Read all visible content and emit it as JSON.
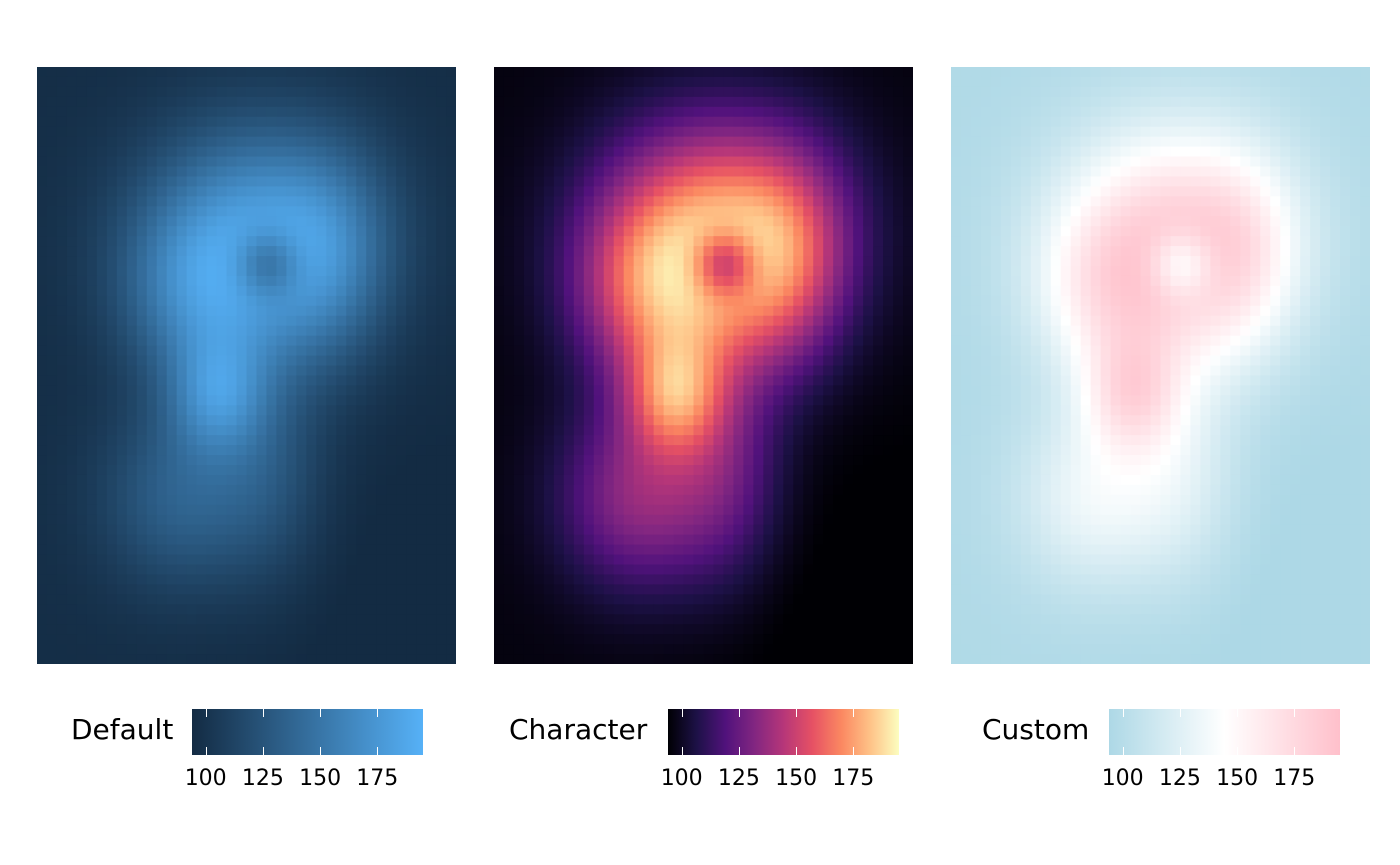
{
  "chart_data": [
    {
      "type": "heatmap",
      "legend_title": "Default",
      "colors": [
        "#132B43",
        "#56B1F7"
      ],
      "legend_ticks": [
        "100",
        "125",
        "150",
        "175"
      ],
      "legend_tick_values": [
        100,
        125,
        150,
        175
      ],
      "value_range": [
        94,
        195
      ],
      "legend_position": "bottom"
    },
    {
      "type": "heatmap",
      "legend_title": "Character",
      "colors": [
        "#000004",
        "#1D1147",
        "#51127C",
        "#822681",
        "#B63679",
        "#E65164",
        "#FB8861",
        "#FEC287",
        "#FCFDBF"
      ],
      "legend_ticks": [
        "100",
        "125",
        "150",
        "175"
      ],
      "legend_tick_values": [
        100,
        125,
        150,
        175
      ],
      "value_range": [
        94,
        195
      ],
      "legend_position": "bottom"
    },
    {
      "type": "heatmap",
      "legend_title": "Custom",
      "colors": [
        "#ADD8E6",
        "#FFFFFF",
        "#FFC0CB"
      ],
      "legend_ticks": [
        "100",
        "125",
        "150",
        "175"
      ],
      "legend_tick_values": [
        100,
        125,
        150,
        175
      ],
      "value_range": [
        94,
        195
      ],
      "legend_position": "bottom"
    }
  ]
}
